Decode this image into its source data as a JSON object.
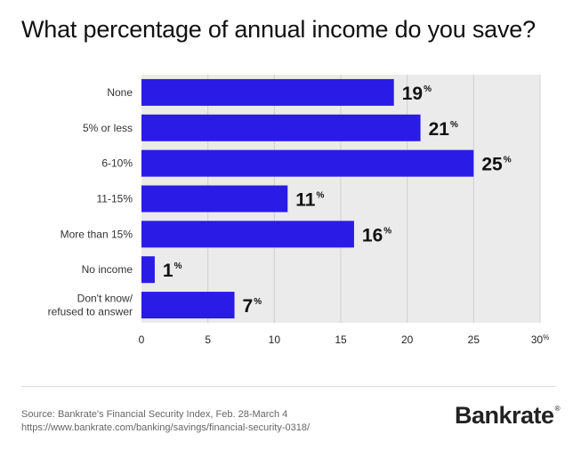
{
  "title": "What percentage of annual income do you save?",
  "chart_data": {
    "type": "bar",
    "orientation": "horizontal",
    "title": "What percentage of annual income do you save?",
    "categories": [
      [
        "None"
      ],
      [
        "5% or less"
      ],
      [
        "6-10%"
      ],
      [
        "11-15%"
      ],
      [
        "More than 15%"
      ],
      [
        "No income"
      ],
      [
        "Don't know/",
        "refused to answer"
      ]
    ],
    "values": [
      19,
      21,
      25,
      11,
      16,
      1,
      7
    ],
    "value_suffix": "%",
    "xlim": [
      0,
      30
    ],
    "xticks": [
      0,
      5,
      10,
      15,
      20,
      25,
      30
    ],
    "xtick_last_suffix": "%",
    "grid": true,
    "bar_color": "#2b1be6",
    "plot_background": "#ebebeb"
  },
  "footer": {
    "source_line": "Source: Bankrate's Financial Security Index, Feb. 28-March 4",
    "url_line": "https://www.bankrate.com/banking/savings/financial-security-0318/"
  },
  "logo": {
    "text": "Bankrate",
    "mark": "®"
  }
}
